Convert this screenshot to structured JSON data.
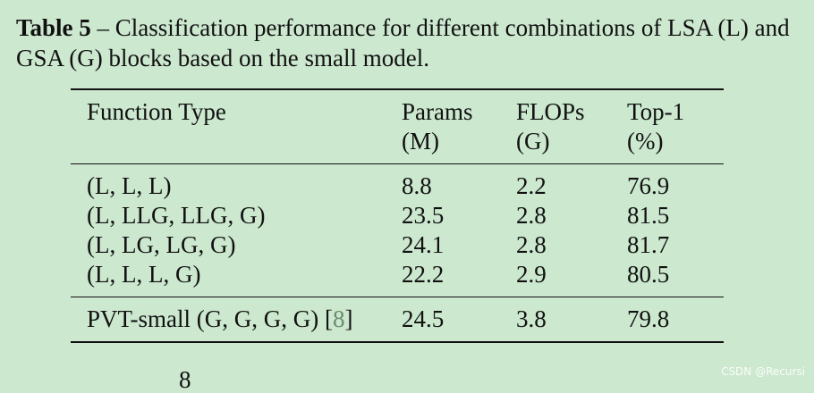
{
  "caption": {
    "label": "Table 5",
    "text": " – Classification performance for different combinations of LSA (L) and GSA (G) blocks based on the small model."
  },
  "table": {
    "headers": [
      {
        "line1": "Function Type",
        "line2": ""
      },
      {
        "line1": "Params",
        "line2": "(M)"
      },
      {
        "line1": "FLOPs",
        "line2": "(G)"
      },
      {
        "line1": "Top-1",
        "line2": "(%)"
      }
    ],
    "rows": [
      {
        "type": "(L, L, L)",
        "params": "8.8",
        "flops": "2.2",
        "top1": "76.9"
      },
      {
        "type": "(L, LLG, LLG, G)",
        "params": "23.5",
        "flops": "2.8",
        "top1": "81.5"
      },
      {
        "type": "(L, LG, LG, G)",
        "params": "24.1",
        "flops": "2.8",
        "top1": "81.7"
      },
      {
        "type": "(L, L, L, G)",
        "params": "22.2",
        "flops": "2.9",
        "top1": "80.5"
      }
    ],
    "baseline": {
      "type_prefix": "PVT-small (G, G, G, G) [",
      "cite": "8",
      "type_suffix": "]",
      "params": "24.5",
      "flops": "3.8",
      "top1": "79.8"
    }
  },
  "page_number": "8",
  "watermark": "CSDN @Recursi"
}
